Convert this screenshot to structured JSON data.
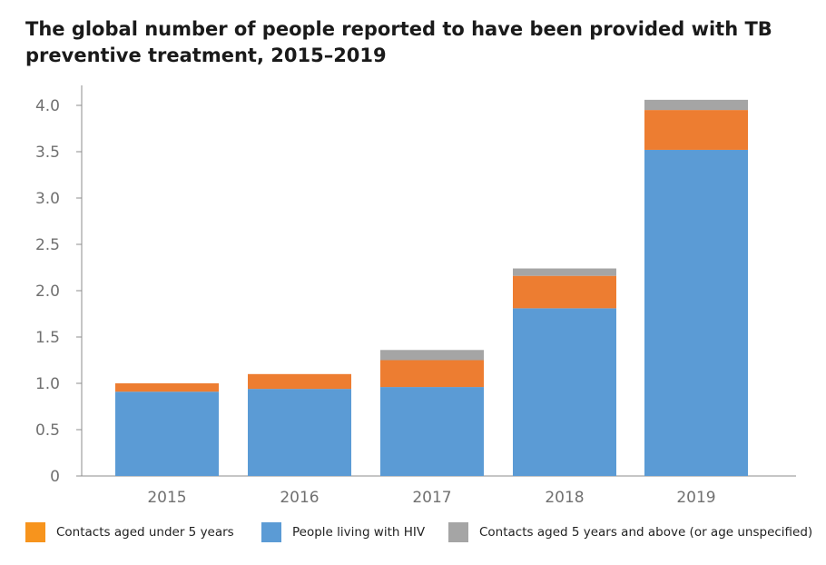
{
  "chart_data": {
    "type": "bar",
    "stacked": true,
    "title_lines": [
      "The global number of people reported to have been provided with TB",
      "preventive treatment, 2015–2019"
    ],
    "categories": [
      "2015",
      "2016",
      "2017",
      "2018",
      "2019"
    ],
    "ylim": [
      0,
      4.2
    ],
    "yticks": [
      {
        "value": 0,
        "label": "0"
      },
      {
        "value": 0.5,
        "label": "0.5"
      },
      {
        "value": 1.0,
        "label": "1.0"
      },
      {
        "value": 1.5,
        "label": "1.5"
      },
      {
        "value": 2.0,
        "label": "2.0"
      },
      {
        "value": 2.5,
        "label": "2.5"
      },
      {
        "value": 3.0,
        "label": "3.0"
      },
      {
        "value": 3.5,
        "label": "3.5"
      },
      {
        "value": 4.0,
        "label": "4.0"
      }
    ],
    "grid": false,
    "legend_position": "bottom",
    "series": [
      {
        "name": "People living with HIV",
        "color": "#5b9bd5",
        "values": [
          0.91,
          0.94,
          0.96,
          1.81,
          3.52
        ]
      },
      {
        "name": "Contacts aged under 5 years",
        "color": "#ed7d31",
        "values": [
          0.09,
          0.16,
          0.29,
          0.35,
          0.43
        ]
      },
      {
        "name": "Contacts aged 5 years and above (or age unspecified)",
        "color": "#a5a5a5",
        "values": [
          0,
          0,
          0.11,
          0.08,
          0.11
        ]
      }
    ],
    "legend": [
      {
        "label": "Contacts aged under 5 years",
        "color": "#f7941d"
      },
      {
        "label": "People living with HIV",
        "color": "#5b9bd5"
      },
      {
        "label": "Contacts aged 5 years and above (or age unspecified)",
        "color": "#a5a5a5"
      }
    ]
  }
}
